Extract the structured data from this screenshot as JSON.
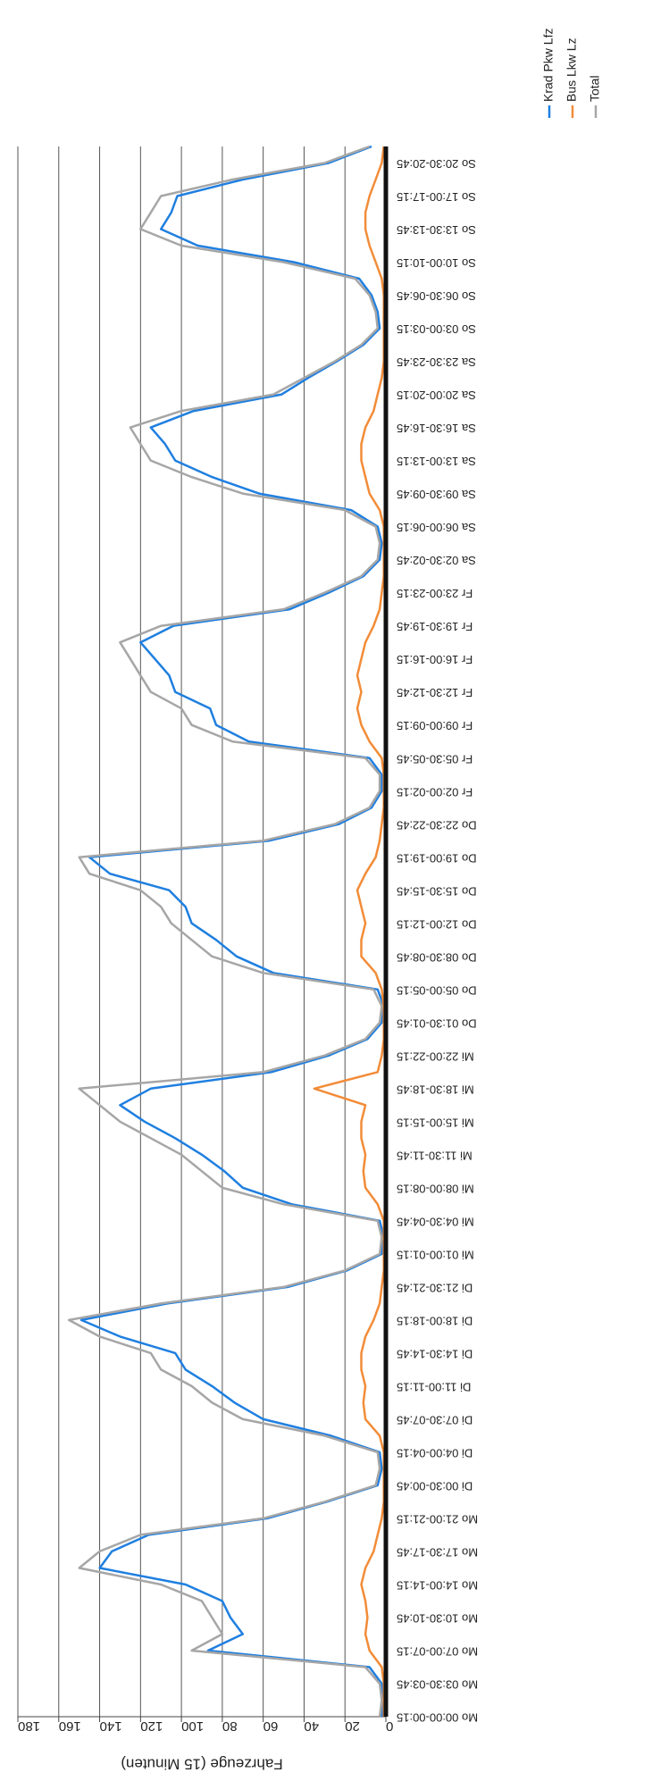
{
  "chart_data": {
    "type": "line",
    "y_label": "Fahrzeuge (15 Minuten)",
    "categories": [
      "Mo 00:00-00:15",
      null,
      "Mo 03:30-03:45",
      null,
      "Mo 07:00-07:15",
      null,
      "Mo 10:30-10:45",
      null,
      "Mo 14:00-14:15",
      null,
      "Mo 17:30-17:45",
      null,
      "Mo 21:00-21:15",
      null,
      "Di 00:30-00:45",
      null,
      "Di 04:00-04:15",
      null,
      "Di 07:30-07:45",
      null,
      "Di 11:00-11:15",
      null,
      "Di 14:30-14:45",
      null,
      "Di 18:00-18:15",
      null,
      "Di 21:30-21:45",
      null,
      "Mi 01:00-01:15",
      null,
      "Mi 04:30-04:45",
      null,
      "Mi 08:00-08:15",
      null,
      "Mi 11:30-11:45",
      null,
      "Mi 15:00-15:15",
      null,
      "Mi 18:30-18:45",
      null,
      "Mi 22:00-22:15",
      null,
      "Do 01:30-01:45",
      null,
      "Do 05:00-05:15",
      null,
      "Do 08:30-08:45",
      null,
      "Do 12:00-12:15",
      null,
      "Do 15:30-15:45",
      null,
      "Do 19:00-19:15",
      null,
      "Do 22:30-22:45",
      null,
      "Fr 02:00-02:15",
      null,
      "Fr 05:30-05:45",
      null,
      "Fr 09:00-09:15",
      null,
      "Fr 12:30-12:45",
      null,
      "Fr 16:00-16:15",
      null,
      "Fr 19:30-19:45",
      null,
      "Fr 23:00-23:15",
      null,
      "Sa 02:30-02:45",
      null,
      "Sa 06:00-06:15",
      null,
      "Sa 09:30-09:45",
      null,
      "Sa 13:00-13:15",
      null,
      "Sa 16:30-16:45",
      null,
      "Sa 20:00-20:15",
      null,
      "Sa 23:30-23:45",
      null,
      "So 03:00-03:15",
      null,
      "So 06:30-06:45",
      null,
      "So 10:00-10:15",
      null,
      "So 13:30-13:45",
      null,
      "So 17:00-17:15",
      null,
      "So 20:30-20:45",
      null
    ],
    "series": [
      {
        "name": "Krad Pkw Lfz",
        "color": "#1f7fe0",
        "values": [
          2,
          1,
          2,
          8,
          87,
          70,
          76,
          80,
          98,
          140,
          134,
          116,
          58,
          29,
          4,
          2,
          3,
          27,
          60,
          74,
          85,
          98,
          103,
          130,
          149,
          107,
          48,
          19,
          2,
          1,
          3,
          46,
          70,
          79,
          90,
          103,
          118,
          130,
          115,
          56,
          28,
          9,
          2,
          1,
          4,
          55,
          73,
          83,
          95,
          98,
          106,
          135,
          145,
          57,
          23,
          7,
          2,
          2,
          8,
          67,
          83,
          86,
          103,
          106,
          113,
          120,
          104,
          47,
          28,
          11,
          3,
          2,
          4,
          17,
          62,
          85,
          103,
          108,
          115,
          94,
          51,
          38,
          24,
          11,
          3,
          4,
          7,
          13,
          45,
          92,
          110,
          105,
          102,
          70,
          28,
          7
        ]
      },
      {
        "name": "Bus Lkw Lz",
        "color": "#f28c38",
        "values": [
          1,
          1,
          1,
          2,
          8,
          10,
          9,
          10,
          12,
          10,
          6,
          4,
          2,
          1,
          1,
          1,
          1,
          3,
          10,
          11,
          10,
          12,
          12,
          10,
          6,
          3,
          2,
          1,
          1,
          1,
          1,
          4,
          10,
          11,
          10,
          12,
          12,
          10,
          35,
          4,
          2,
          1,
          1,
          1,
          2,
          5,
          12,
          12,
          10,
          12,
          14,
          10,
          5,
          3,
          2,
          1,
          1,
          1,
          2,
          8,
          12,
          14,
          12,
          14,
          12,
          10,
          6,
          3,
          2,
          1,
          1,
          1,
          1,
          3,
          8,
          10,
          12,
          12,
          10,
          6,
          4,
          2,
          1,
          1,
          1,
          1,
          1,
          2,
          5,
          8,
          10,
          10,
          8,
          5,
          2,
          1
        ]
      },
      {
        "name": "Total",
        "color": "#a6a6a6",
        "values": [
          3,
          2,
          3,
          10,
          95,
          80,
          85,
          90,
          110,
          150,
          140,
          120,
          60,
          30,
          5,
          3,
          4,
          30,
          70,
          85,
          95,
          110,
          115,
          140,
          155,
          110,
          50,
          20,
          3,
          2,
          4,
          50,
          80,
          90,
          100,
          115,
          130,
          140,
          150,
          60,
          30,
          10,
          3,
          2,
          6,
          60,
          85,
          95,
          105,
          110,
          120,
          145,
          150,
          60,
          25,
          8,
          3,
          3,
          10,
          75,
          95,
          100,
          115,
          120,
          125,
          130,
          110,
          50,
          30,
          12,
          4,
          3,
          5,
          20,
          70,
          95,
          115,
          120,
          125,
          100,
          55,
          40,
          25,
          12,
          4,
          5,
          8,
          15,
          50,
          100,
          120,
          115,
          110,
          75,
          30,
          8
        ]
      }
    ],
    "ylim": [
      0,
      180
    ],
    "yticks": [
      0,
      20,
      40,
      60,
      80,
      100,
      120,
      140,
      160,
      180
    ],
    "grid": true,
    "legend": "right"
  }
}
